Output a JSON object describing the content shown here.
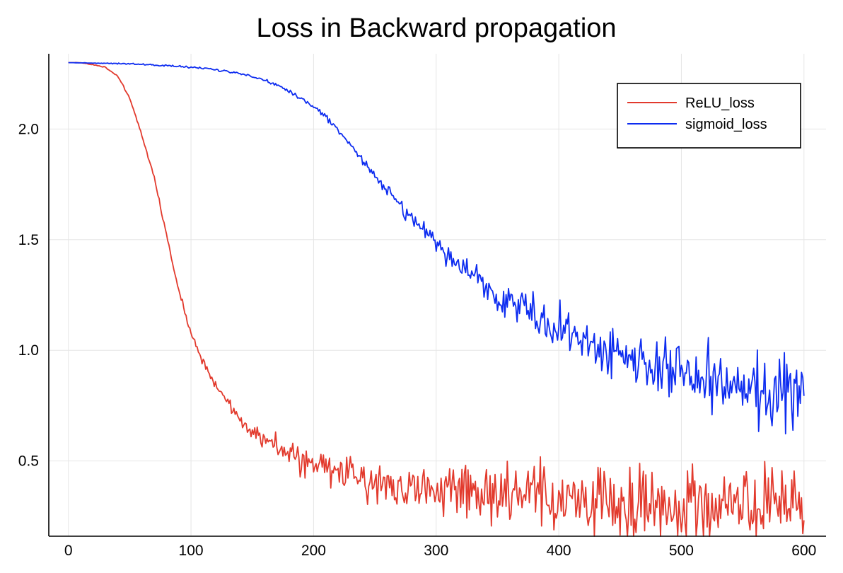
{
  "chart_data": {
    "type": "line",
    "title": "Loss in Backward propagation",
    "xlabel": "",
    "ylabel": "",
    "xlim": [
      -16,
      618
    ],
    "ylim": [
      0.16,
      2.34
    ],
    "x_ticks": [
      0,
      100,
      200,
      300,
      400,
      500,
      600
    ],
    "y_ticks": [
      0.5,
      1.0,
      1.5,
      2.0
    ],
    "y_tick_labels": [
      "0.5",
      "1.0",
      "1.5",
      "2.0"
    ],
    "grid": true,
    "legend": "top-right",
    "series": [
      {
        "name": "ReLU_loss",
        "color": "#e23a2d",
        "noise": [
          0,
          0.005,
          0.02,
          0.05,
          0.08,
          0.1,
          0.12,
          0.13,
          0.14,
          0.14,
          0.14
        ],
        "points": [
          [
            0,
            2.3
          ],
          [
            10,
            2.3
          ],
          [
            20,
            2.29
          ],
          [
            30,
            2.28
          ],
          [
            40,
            2.24
          ],
          [
            50,
            2.14
          ],
          [
            60,
            1.97
          ],
          [
            70,
            1.78
          ],
          [
            80,
            1.52
          ],
          [
            90,
            1.27
          ],
          [
            100,
            1.08
          ],
          [
            110,
            0.95
          ],
          [
            120,
            0.84
          ],
          [
            130,
            0.76
          ],
          [
            140,
            0.7
          ],
          [
            150,
            0.64
          ],
          [
            160,
            0.6
          ],
          [
            170,
            0.56
          ],
          [
            180,
            0.53
          ],
          [
            190,
            0.5
          ],
          [
            200,
            0.48
          ],
          [
            220,
            0.45
          ],
          [
            240,
            0.42
          ],
          [
            260,
            0.4
          ],
          [
            280,
            0.38
          ],
          [
            300,
            0.37
          ],
          [
            350,
            0.35
          ],
          [
            400,
            0.32
          ],
          [
            450,
            0.31
          ],
          [
            500,
            0.3
          ],
          [
            550,
            0.29
          ],
          [
            600,
            0.28
          ]
        ]
      },
      {
        "name": "sigmoid_loss",
        "color": "#0d2cf0",
        "noise": [
          0,
          0.003,
          0.004,
          0.006,
          0.015,
          0.04,
          0.07,
          0.09,
          0.11,
          0.13,
          0.14
        ],
        "points": [
          [
            0,
            2.3
          ],
          [
            50,
            2.295
          ],
          [
            100,
            2.28
          ],
          [
            130,
            2.26
          ],
          [
            150,
            2.24
          ],
          [
            170,
            2.2
          ],
          [
            190,
            2.14
          ],
          [
            200,
            2.1
          ],
          [
            220,
            2.0
          ],
          [
            240,
            1.86
          ],
          [
            260,
            1.72
          ],
          [
            280,
            1.6
          ],
          [
            300,
            1.48
          ],
          [
            320,
            1.38
          ],
          [
            340,
            1.29
          ],
          [
            360,
            1.22
          ],
          [
            380,
            1.16
          ],
          [
            400,
            1.1
          ],
          [
            420,
            1.05
          ],
          [
            440,
            1.0
          ],
          [
            460,
            0.96
          ],
          [
            480,
            0.92
          ],
          [
            500,
            0.89
          ],
          [
            520,
            0.86
          ],
          [
            540,
            0.83
          ],
          [
            560,
            0.81
          ],
          [
            580,
            0.8
          ],
          [
            600,
            0.79
          ]
        ]
      }
    ]
  }
}
